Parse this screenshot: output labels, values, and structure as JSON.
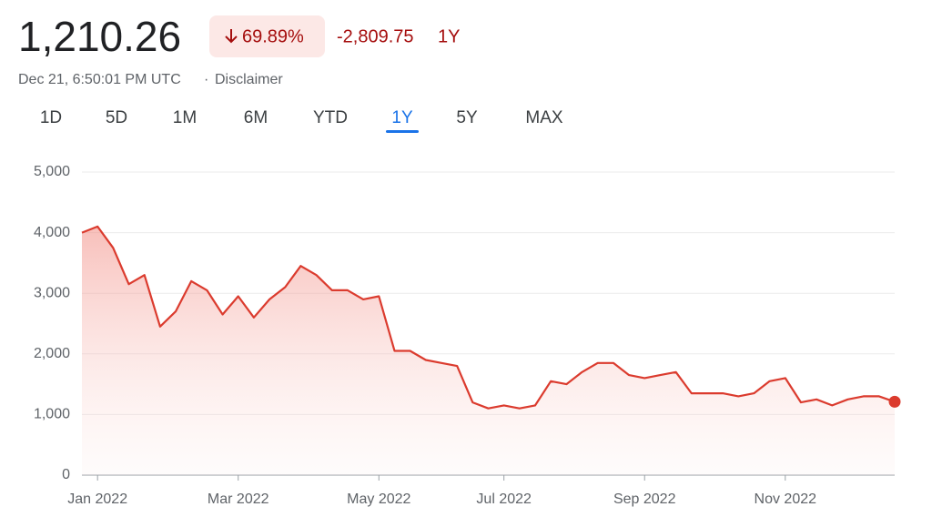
{
  "header": {
    "price": "1,210.26",
    "change_percent": "69.89%",
    "change_value": "-2,809.75",
    "period": "1Y",
    "timestamp": "Dec 21, 6:50:01 PM UTC",
    "separator": "·",
    "disclaimer": "Disclaimer"
  },
  "tabs": {
    "items": [
      "1D",
      "5D",
      "1M",
      "6M",
      "YTD",
      "1Y",
      "5Y",
      "MAX"
    ],
    "active": 5
  },
  "chart_data": {
    "type": "line",
    "color": "#db3b2e",
    "grid": true,
    "categories": [
      null,
      "Jan 2022",
      null,
      null,
      null,
      null,
      null,
      null,
      null,
      null,
      "Mar 2022",
      null,
      null,
      null,
      null,
      null,
      null,
      null,
      null,
      "May 2022",
      null,
      null,
      null,
      null,
      null,
      null,
      null,
      "Jul 2022",
      null,
      null,
      null,
      null,
      null,
      null,
      null,
      null,
      "Sep 2022",
      null,
      null,
      null,
      null,
      null,
      null,
      null,
      null,
      "Nov 2022",
      null,
      null,
      null,
      null,
      null,
      null,
      null
    ],
    "series": [
      {
        "values": [
          4000,
          4100,
          3750,
          3150,
          3300,
          2450,
          2700,
          3200,
          3050,
          2650,
          2950,
          2600,
          2900,
          3100,
          3450,
          3300,
          3050,
          3050,
          2900,
          2950,
          2050,
          2050,
          1900,
          1850,
          1800,
          1200,
          1100,
          1150,
          1100,
          1150,
          1550,
          1500,
          1700,
          1850,
          1850,
          1650,
          1600,
          1650,
          1700,
          1350,
          1350,
          1350,
          1300,
          1350,
          1550,
          1600,
          1200,
          1250,
          1150,
          1250,
          1300,
          1300,
          1210.26
        ]
      }
    ],
    "ylim": [
      0,
      5000
    ],
    "yticks": [
      0,
      {
        "value": 1000,
        "label": "1,000"
      },
      {
        "value": 2000,
        "label": "2,000"
      },
      {
        "value": 3000,
        "label": "3,000"
      },
      {
        "value": 4000,
        "label": "4,000"
      },
      {
        "value": 5000,
        "label": "5,000"
      }
    ]
  }
}
